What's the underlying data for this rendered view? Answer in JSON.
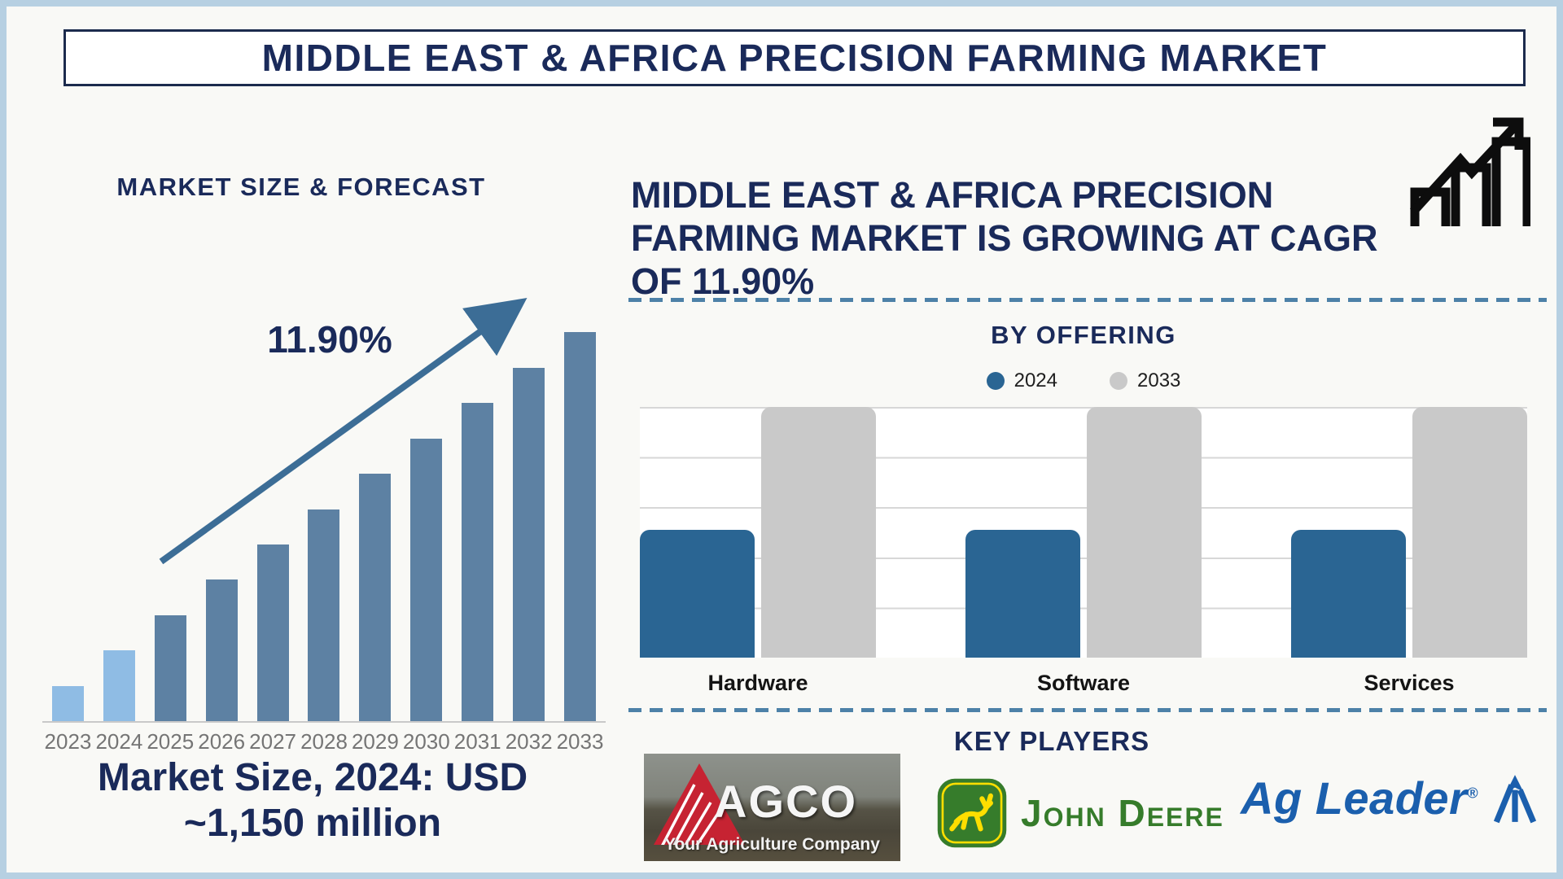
{
  "header": {
    "title": "MIDDLE EAST & AFRICA PRECISION FARMING MARKET"
  },
  "right_panel": {
    "headline_lines": [
      "MIDDLE EAST & AFRICA PRECISION",
      "FARMING MARKET IS GROWING AT CAGR",
      "OF 11.90%"
    ],
    "key_players": {
      "title": "KEY PLAYERS",
      "agco": {
        "name": "AGCO",
        "tagline": "Your Agriculture Company"
      },
      "john_deere": {
        "name": "John Deere"
      },
      "ag_leader": {
        "name": "Ag Leader",
        "reg_mark": "®"
      }
    }
  },
  "colors": {
    "navy_text": "#1a2a5a",
    "frame_border": "#b7d0e2",
    "title_box_border": "#1c2b4d",
    "arrow_steel_blue": "#3c6d96",
    "dashed_divider": "#4d81a8",
    "bar_historical_light_blue": "#8fbce4",
    "bar_forecast_slate_blue": "#5d81a3",
    "offering_2024_blue": "#2a6593",
    "offering_2033_gray": "#c9c9c9",
    "year_label_gray": "#757575",
    "john_deere_green": "#367C2B",
    "john_deere_yellow": "#FFDE00",
    "ag_leader_blue": "#1b5fad",
    "agco_red": "#c62332"
  },
  "chart_data": [
    {
      "id": "market-size-forecast",
      "type": "bar",
      "title": "MARKET SIZE & FORECAST",
      "categories": [
        "2023",
        "2024",
        "2025",
        "2026",
        "2027",
        "2028",
        "2029",
        "2030",
        "2031",
        "2032",
        "2033"
      ],
      "values_pct_of_max": [
        9.1,
        18.2,
        27.3,
        36.4,
        45.5,
        54.5,
        63.6,
        72.7,
        81.8,
        90.9,
        100
      ],
      "historical_categories": [
        "2023",
        "2024"
      ],
      "color_historical": "#8fbce4",
      "color_forecast": "#5d81a3",
      "annotation": "11.90%",
      "caption_lines": [
        "Market Size, 2024: USD",
        "~1,150 million"
      ],
      "xlabel": "",
      "ylabel": "",
      "grid": false,
      "note": "No y-axis scale shown; bar heights rise linearly; 2024 value stated as USD ~1,150 million; CAGR 11.90%"
    },
    {
      "id": "by-offering",
      "type": "bar",
      "title": "BY OFFERING",
      "categories": [
        "Hardware",
        "Software",
        "Services"
      ],
      "series": [
        {
          "name": "2024",
          "color": "#2a6593",
          "values_pct_of_max": [
            51,
            51,
            51
          ]
        },
        {
          "name": "2033",
          "color": "#c9c9c9",
          "values_pct_of_max": [
            100,
            100,
            100
          ]
        }
      ],
      "legend_position": "top",
      "grid": true,
      "xlabel": "",
      "ylabel": "",
      "note": "No y-axis scale shown; 2033 bars reach chart top, 2024 bars about half height"
    }
  ]
}
